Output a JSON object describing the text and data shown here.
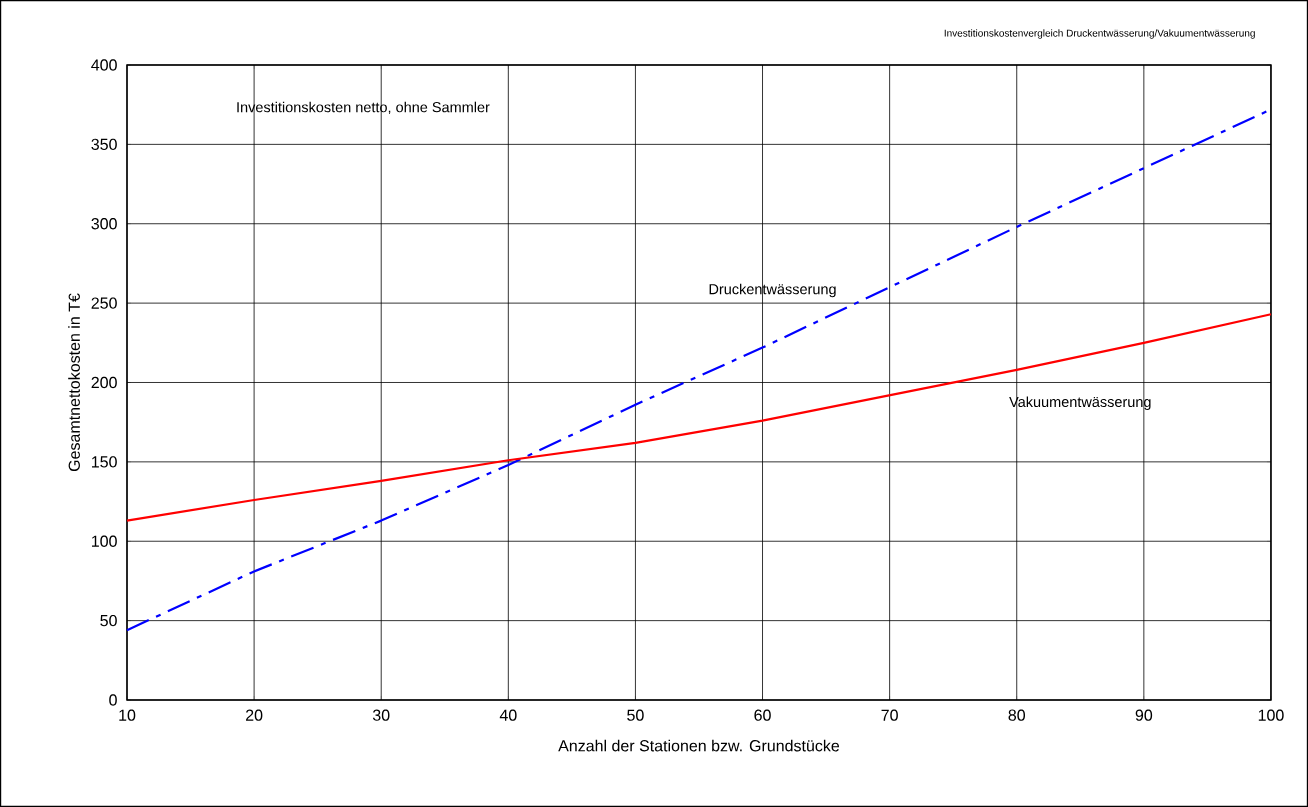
{
  "chart_data": {
    "type": "line",
    "title": "Investitionskostenvergleich Druckentwässerung/Vakuumentwässerung",
    "subtitle": "Investitionskosten netto, ohne Sammler",
    "xlabel": "Anzahl der Stationen bzw. Grundstücke",
    "ylabel": "Gesamtnettokosten in T€",
    "xlim": [
      10,
      100
    ],
    "ylim": [
      0,
      400
    ],
    "xticks": [
      10,
      20,
      30,
      40,
      50,
      60,
      70,
      80,
      90,
      100
    ],
    "yticks": [
      0,
      50,
      100,
      150,
      200,
      250,
      300,
      350,
      400
    ],
    "grid": true,
    "marker": "none",
    "series": [
      {
        "name": "Druckentwässerung",
        "color": "#0000ff",
        "line_style": "dashed",
        "x": [
          10,
          20,
          30,
          40,
          50,
          60,
          70,
          80,
          90,
          100
        ],
        "values": [
          44,
          81,
          113,
          148,
          186,
          222,
          260,
          298,
          335,
          372
        ]
      },
      {
        "name": "Vakuumentwässerung",
        "color": "#ff0000",
        "line_style": "solid",
        "x": [
          10,
          20,
          30,
          40,
          50,
          60,
          80,
          90,
          100
        ],
        "values": [
          113,
          126,
          138,
          151,
          162,
          176,
          208,
          225,
          243
        ]
      }
    ]
  }
}
